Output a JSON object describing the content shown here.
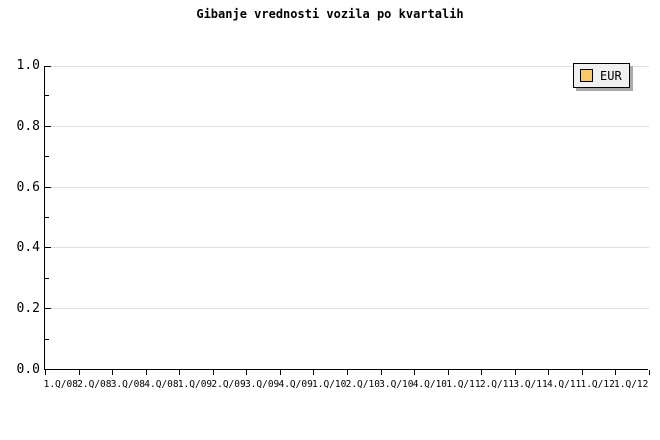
{
  "chart_data": {
    "type": "line",
    "title": "Gibanje vrednosti vozila po kvartalih",
    "categories": [
      "1.Q/08",
      "2.Q/08",
      "3.Q/08",
      "4.Q/08",
      "1.Q/09",
      "2.Q/09",
      "3.Q/09",
      "4.Q/09",
      "1.Q/10",
      "2.Q/10",
      "3.Q/10",
      "4.Q/10",
      "1.Q/11",
      "2.Q/11",
      "3.Q/11",
      "4.Q/11",
      "1.Q/12",
      "1.Q/12"
    ],
    "series": [
      {
        "name": "EUR",
        "values": []
      }
    ],
    "xlabel": "",
    "ylabel": "",
    "ylim": [
      0.0,
      1.0
    ],
    "y_tick_labels": [
      "0.0",
      "0.2",
      "0.4",
      "0.6",
      "0.8",
      "1.0"
    ],
    "y_major_ticks": [
      0.0,
      0.2,
      0.4,
      0.6,
      0.8,
      1.0
    ],
    "y_minor_ticks": [
      0.1,
      0.3,
      0.5,
      0.7,
      0.9
    ],
    "grid": "horizontal lines at major y ticks",
    "legend_position": "top-right"
  },
  "legend": {
    "items": [
      {
        "label": "EUR",
        "swatch_color": "#fcc766"
      }
    ]
  },
  "colors": {
    "background": "#ffffff",
    "axis": "#000000",
    "gridline": "#e0e0e0",
    "text": "#000000",
    "legend_background": "#f0f0f0",
    "legend_border": "#000000",
    "legend_shadow": "#aaaaaa",
    "eur_swatch": "#fcc766"
  }
}
